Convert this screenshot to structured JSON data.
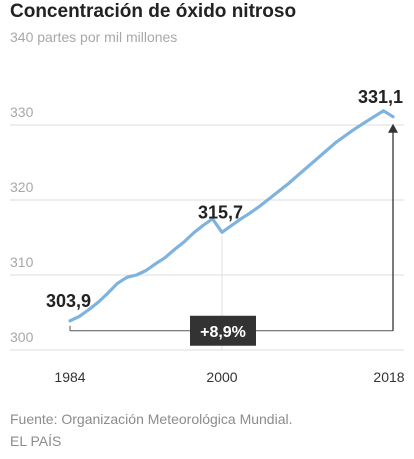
{
  "title": "Concentración de óxido nitroso",
  "chart_data": {
    "type": "line",
    "title": "Concentración de óxido nitroso",
    "ylabel": "partes por mil millones",
    "y_ticks": [
      {
        "value": 300,
        "label": "300"
      },
      {
        "value": 310,
        "label": "310"
      },
      {
        "value": 320,
        "label": "320"
      },
      {
        "value": 330,
        "label": "330"
      },
      {
        "value": 340,
        "label": "340 partes por mil millones"
      }
    ],
    "x_ticks": [
      {
        "value": 1984,
        "label": "1984"
      },
      {
        "value": 2000,
        "label": "2000"
      },
      {
        "value": 2018,
        "label": "2018"
      }
    ],
    "ylim": [
      300,
      340
    ],
    "xlim": [
      1984,
      2018
    ],
    "grid": true,
    "series": [
      {
        "color": "#7fb3df",
        "points": [
          [
            1984,
            303.9
          ],
          [
            1985,
            304.5
          ],
          [
            1986,
            305.4
          ],
          [
            1987,
            306.4
          ],
          [
            1988,
            307.6
          ],
          [
            1989,
            308.9
          ],
          [
            1990,
            309.7
          ],
          [
            1991,
            310.0
          ],
          [
            1992,
            310.6
          ],
          [
            1993,
            311.5
          ],
          [
            1994,
            312.3
          ],
          [
            1995,
            313.4
          ],
          [
            1996,
            314.4
          ],
          [
            1997,
            315.6
          ],
          [
            1998,
            316.6
          ],
          [
            1999,
            317.5
          ],
          [
            2000,
            315.7
          ],
          [
            2001,
            316.6
          ],
          [
            2002,
            317.5
          ],
          [
            2003,
            318.3
          ],
          [
            2004,
            319.2
          ],
          [
            2005,
            320.2
          ],
          [
            2006,
            321.2
          ],
          [
            2007,
            322.2
          ],
          [
            2008,
            323.3
          ],
          [
            2009,
            324.4
          ],
          [
            2010,
            325.5
          ],
          [
            2011,
            326.6
          ],
          [
            2012,
            327.7
          ],
          [
            2013,
            328.6
          ],
          [
            2014,
            329.5
          ],
          [
            2015,
            330.3
          ],
          [
            2016,
            331.1
          ],
          [
            2017,
            331.9
          ],
          [
            2018,
            331.1
          ]
        ]
      }
    ],
    "annotations": [
      {
        "x": 1984,
        "y": 303.9,
        "label": "303,9"
      },
      {
        "x": 2000,
        "y": 315.7,
        "label": "315,7"
      },
      {
        "x": 2018,
        "y": 331.1,
        "label": "331,1"
      }
    ],
    "change_label": "+8,9%"
  },
  "footer": {
    "source": "Fuente: Organización Meteorológica Mundial.",
    "brand": "EL PAÍS"
  }
}
